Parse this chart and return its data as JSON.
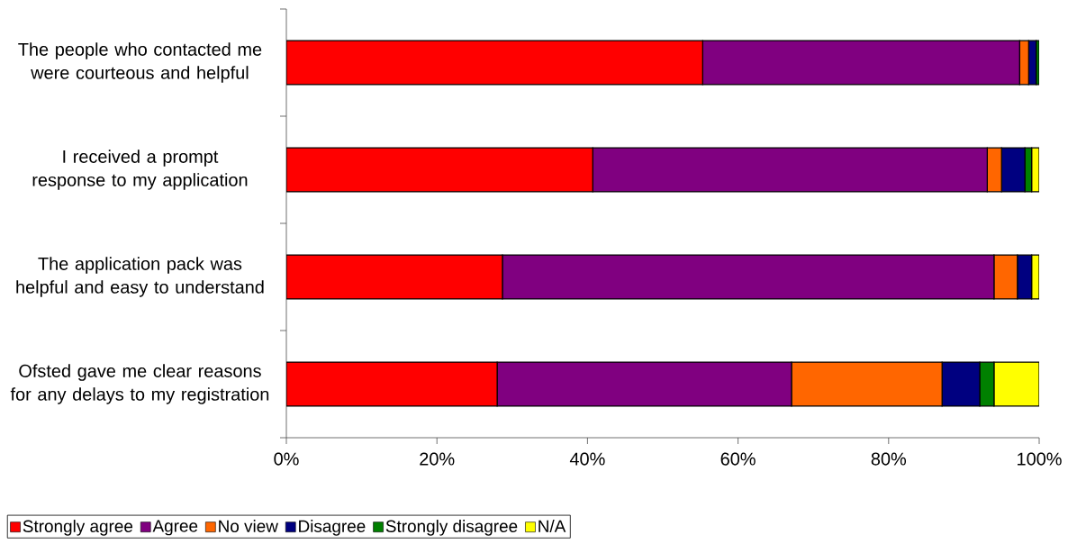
{
  "chart_data": {
    "type": "bar",
    "orientation": "horizontal",
    "stacked": true,
    "categories": [
      "The people who contacted me were courteous and helpful",
      "I received a prompt response to my application",
      "The application pack was helpful and easy to understand",
      "Ofsted gave me clear reasons for any delays to my registration"
    ],
    "series": [
      {
        "name": "Strongly agree",
        "color": "#ff0000",
        "values": [
          55.3,
          40.7,
          28.7,
          28.0
        ]
      },
      {
        "name": "Agree",
        "color": "#800080",
        "values": [
          42.1,
          52.4,
          65.3,
          39.1
        ]
      },
      {
        "name": "No view",
        "color": "#ff6600",
        "values": [
          1.2,
          1.9,
          3.1,
          20.0
        ]
      },
      {
        "name": "Disagree",
        "color": "#000080",
        "values": [
          1.0,
          3.1,
          1.9,
          5.0
        ]
      },
      {
        "name": "Strongly disagree",
        "color": "#008000",
        "values": [
          0.4,
          0.9,
          0,
          1.9
        ]
      },
      {
        "name": "N/A",
        "color": "#ffff00",
        "values": [
          0,
          1.0,
          1.0,
          6.0
        ]
      }
    ],
    "xlim": [
      0,
      100
    ],
    "xticks": [
      {
        "value": 0,
        "label": "0%"
      },
      {
        "value": 20,
        "label": "20%"
      },
      {
        "value": 40,
        "label": "40%"
      },
      {
        "value": 60,
        "label": "60%"
      },
      {
        "value": 80,
        "label": "80%"
      },
      {
        "value": 100,
        "label": "100%"
      }
    ],
    "grid": false,
    "legend": "bottom"
  }
}
